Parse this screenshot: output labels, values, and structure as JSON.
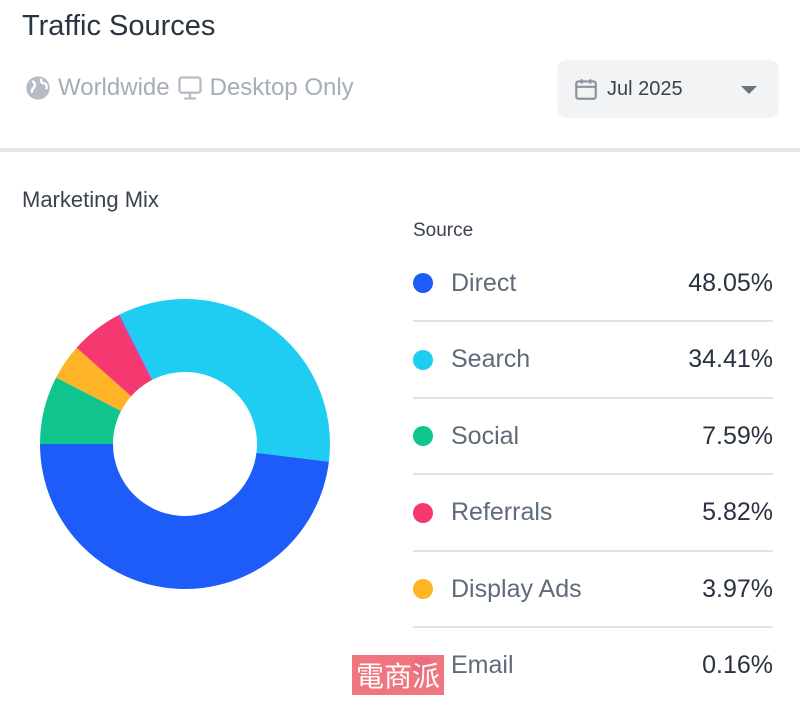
{
  "header": {
    "title": "Traffic Sources",
    "region": "Worldwide",
    "device": "Desktop Only",
    "date": "Jul 2025"
  },
  "section_title": "Marketing Mix",
  "watermark": "電商派",
  "chart_data": {
    "type": "pie",
    "donut": true,
    "title": "Marketing Mix",
    "legend_title": "Source",
    "legend_placement": "right",
    "categories": [
      "Direct",
      "Search",
      "Social",
      "Referrals",
      "Display Ads",
      "Email"
    ],
    "values": [
      48.05,
      34.41,
      7.59,
      5.82,
      3.97,
      0.16
    ],
    "labels": [
      "48.05%",
      "34.41%",
      "7.59%",
      "5.82%",
      "3.97%",
      "0.16%"
    ],
    "colors": [
      "#1d5cf9",
      "#1fcdf3",
      "#10c48e",
      "#f5386f",
      "#ffb326",
      "#b23ee6"
    ]
  }
}
